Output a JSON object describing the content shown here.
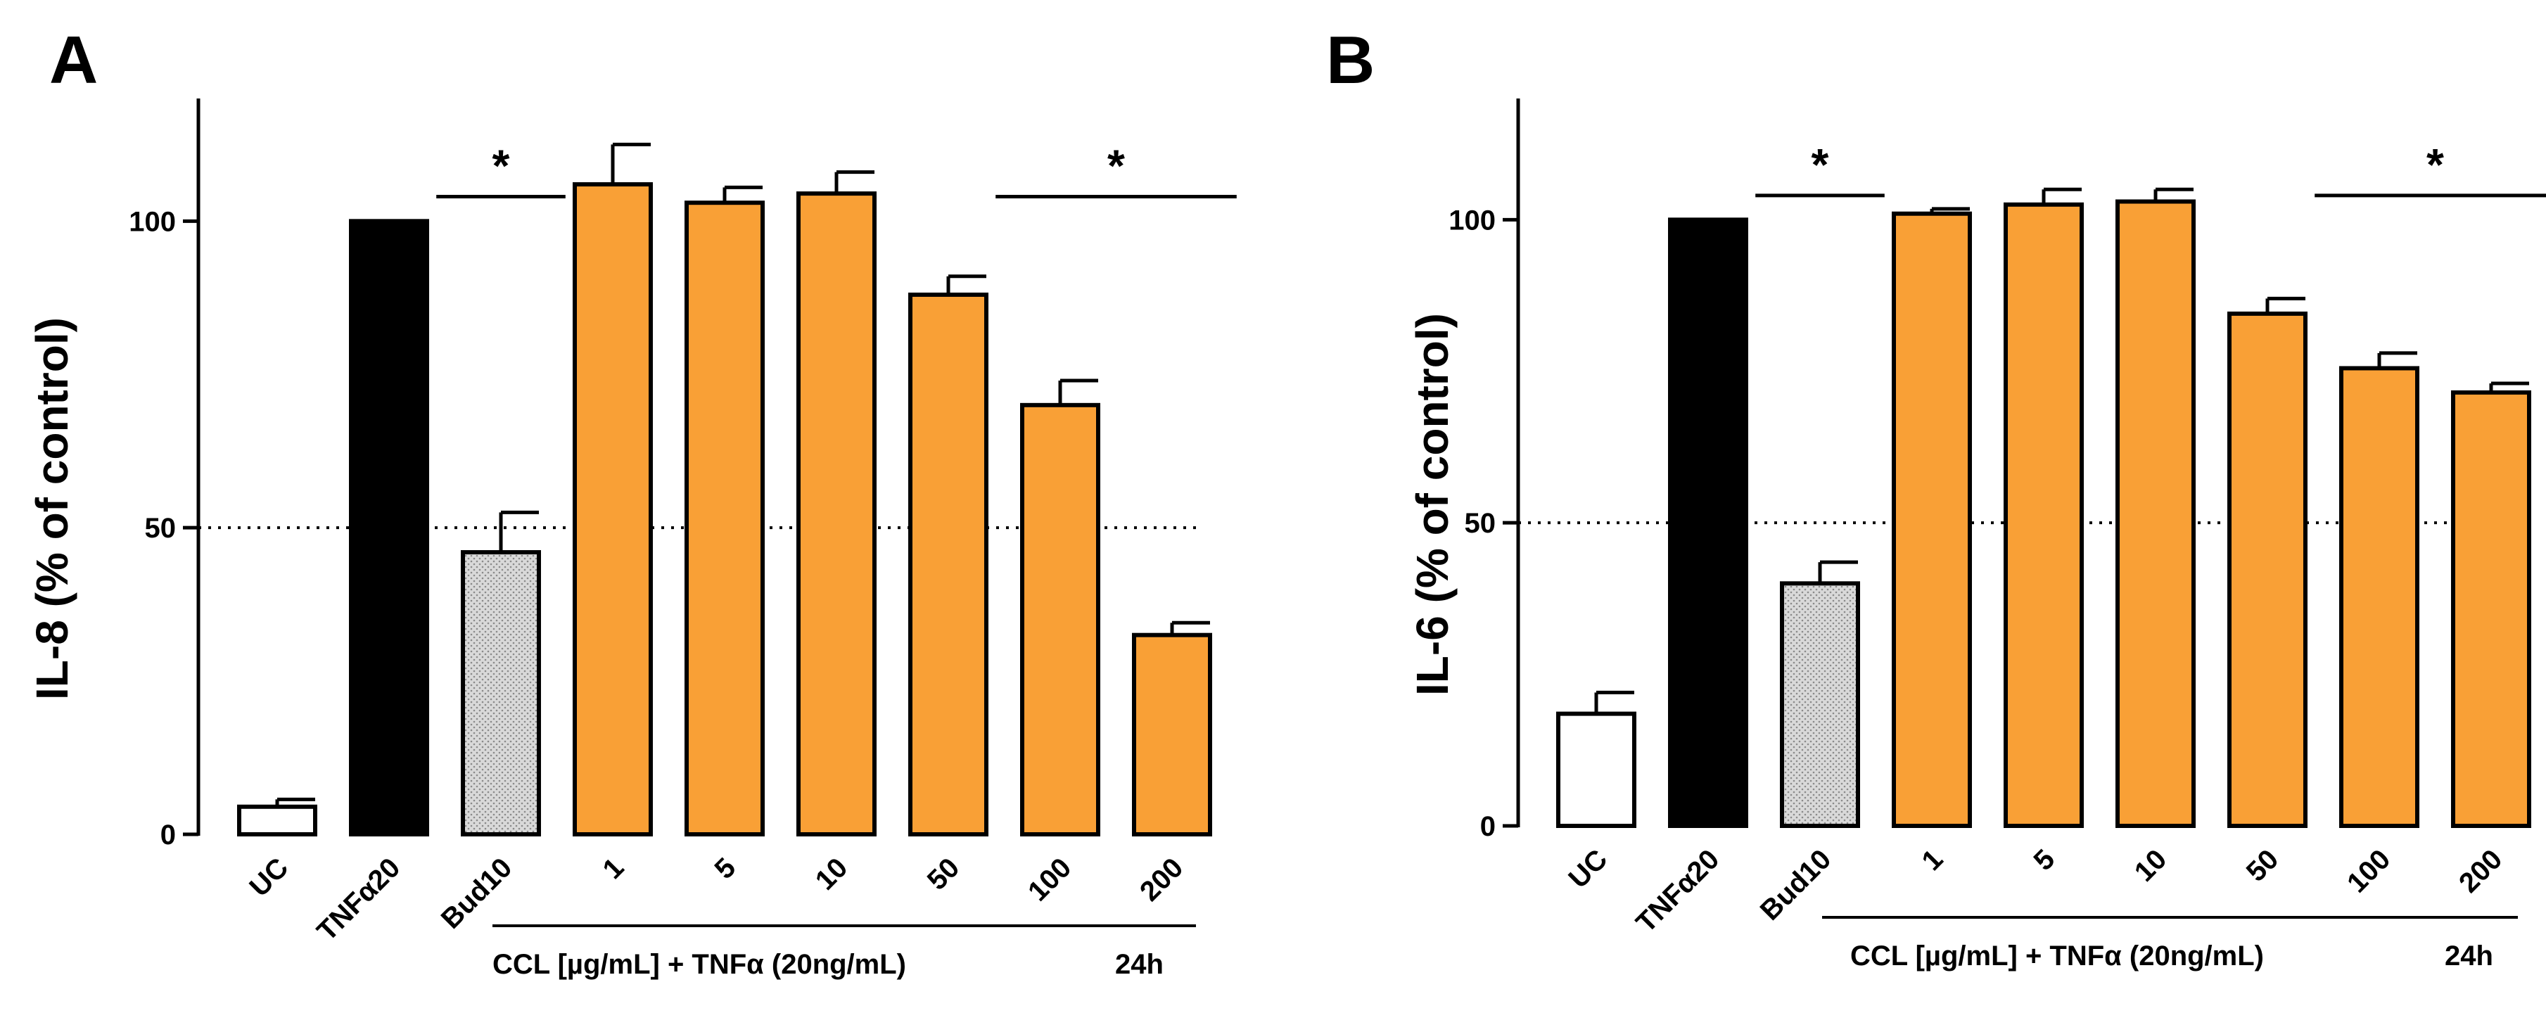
{
  "chart_data": [
    {
      "panel_label": "A",
      "type": "bar",
      "ylabel": "IL-8 (% of control)",
      "ylim": [
        0,
        120
      ],
      "yticks": [
        0,
        50,
        100
      ],
      "reference_line": 50,
      "categories": [
        "UC",
        "TNFα20",
        "Bud10",
        "1",
        "5",
        "10",
        "50",
        "100",
        "200"
      ],
      "values": [
        4.5,
        100,
        46,
        106,
        103,
        104.5,
        88,
        70,
        32.5
      ],
      "errors": [
        1.2,
        0,
        6.5,
        6.5,
        2.5,
        3.5,
        3,
        4,
        2
      ],
      "bar_styles": [
        "white",
        "black",
        "gray",
        "orange",
        "orange",
        "orange",
        "orange",
        "orange",
        "orange"
      ],
      "group_label": "CCL [µg/mL] + TNFα (20ng/mL)",
      "time_label": "24h",
      "significance": [
        {
          "from": 2,
          "to": 2,
          "label": "*"
        },
        {
          "from": 7,
          "to": 8,
          "label": "*"
        }
      ]
    },
    {
      "panel_label": "B",
      "type": "bar",
      "ylabel": "IL-6 (% of control)",
      "ylim": [
        0,
        120
      ],
      "yticks": [
        0,
        50,
        100
      ],
      "reference_line": 50,
      "categories": [
        "UC",
        "TNFα20",
        "Bud10",
        "1",
        "5",
        "10",
        "50",
        "100",
        "200"
      ],
      "values": [
        18.5,
        100,
        40,
        101,
        102.5,
        103,
        84.5,
        75.5,
        71.5
      ],
      "errors": [
        3.5,
        0,
        3.5,
        0.8,
        2.5,
        2,
        2.5,
        2.5,
        1.5
      ],
      "bar_styles": [
        "white",
        "black",
        "gray",
        "orange",
        "orange",
        "orange",
        "orange",
        "orange",
        "orange"
      ],
      "group_label": "CCL [µg/mL] + TNFα (20ng/mL)",
      "time_label": "24h",
      "significance": [
        {
          "from": 2,
          "to": 2,
          "label": "*"
        },
        {
          "from": 7,
          "to": 8,
          "label": "*"
        }
      ]
    }
  ],
  "colors": {
    "orange": "#f9a036",
    "black": "#000000",
    "white": "#ffffff",
    "gray": "#d9d9d9"
  }
}
